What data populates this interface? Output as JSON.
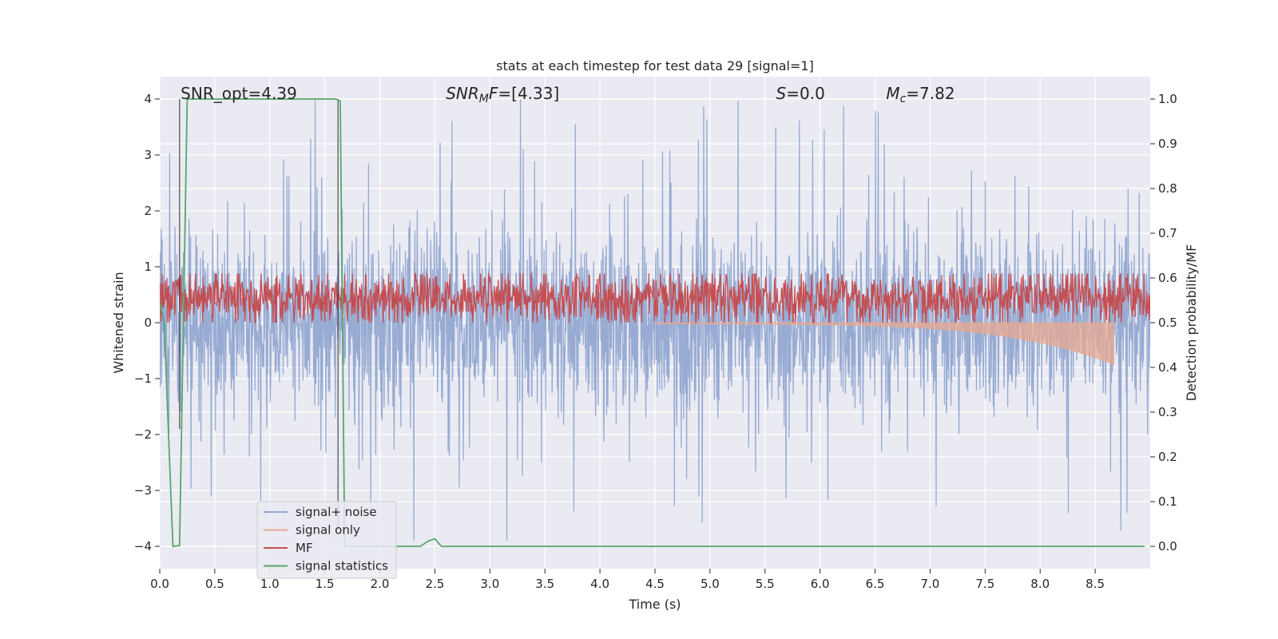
{
  "chart_data": {
    "type": "line",
    "title": "stats at each timestep for test data 29 [signal=1]",
    "xlabel": "Time (s)",
    "ylabel_left": "Whitened strain",
    "ylabel_right": "Detection probability/MF",
    "xlim": [
      0.0,
      9.0
    ],
    "ylim_left": [
      -4.4,
      4.4
    ],
    "ylim_right": [
      -0.05,
      1.05
    ],
    "x_ticks": [
      0.0,
      0.5,
      1.0,
      1.5,
      2.0,
      2.5,
      3.0,
      3.5,
      4.0,
      4.5,
      5.0,
      5.5,
      6.0,
      6.5,
      7.0,
      7.5,
      8.0,
      8.5
    ],
    "x_tick_labels": [
      "0.0",
      "0.5",
      "1.0",
      "1.5",
      "2.0",
      "2.5",
      "3.0",
      "3.5",
      "4.0",
      "4.5",
      "5.0",
      "5.5",
      "6.0",
      "6.5",
      "7.0",
      "7.5",
      "8.0",
      "8.5"
    ],
    "y_ticks_left": [
      -4,
      -3,
      -2,
      -1,
      0,
      1,
      2,
      3,
      4
    ],
    "y_tick_labels_left": [
      "−4",
      "−3",
      "−2",
      "−1",
      "0",
      "1",
      "2",
      "3",
      "4"
    ],
    "y_ticks_right": [
      0.0,
      0.1,
      0.2,
      0.3,
      0.4,
      0.5,
      0.6,
      0.7,
      0.8,
      0.9,
      1.0
    ],
    "y_tick_labels_right": [
      "0.0",
      "0.1",
      "0.2",
      "0.3",
      "0.4",
      "0.5",
      "0.6",
      "0.7",
      "0.8",
      "0.9",
      "1.0"
    ],
    "grid": true,
    "legend_position": "lower-left",
    "annotations": [
      {
        "text": "SNR_opt=4.39",
        "x": 0.19
      },
      {
        "text": "SNR_MF=[4.33]",
        "x": 2.6
      },
      {
        "text": "S=0.0",
        "x": 5.6
      },
      {
        "text": "M_c=7.82",
        "x": 6.6
      }
    ],
    "vertical_lines": [
      {
        "x": 0.18,
        "y_range": [
          -1.9,
          4.0
        ]
      },
      {
        "x": 1.62,
        "y_range": [
          -3.7,
          4.0
        ]
      }
    ],
    "series": [
      {
        "name": "signal+ noise",
        "axis": "left",
        "color": "#92a8d1",
        "description_type": "noise",
        "envelope": {
          "dense_abs": 1.5,
          "peak_max": 4.0,
          "peak_min": -3.9
        }
      },
      {
        "name": "signal only",
        "axis": "left",
        "color": "#e8a890",
        "description_type": "chirp",
        "chirp": {
          "x_start": 4.5,
          "x_end": 8.67,
          "amp_start": 0.05,
          "amp_end": 0.75
        }
      },
      {
        "name": "MF",
        "axis": "right",
        "color": "#c44e52",
        "description_type": "noise",
        "envelope": {
          "base": 0.5,
          "mean": 0.555,
          "spread": 0.03,
          "peaks": [
            [
              3.8,
              0.6
            ],
            [
              7.98,
              0.605
            ],
            [
              8.78,
              0.6
            ],
            [
              2.1,
              0.59
            ],
            [
              6.9,
              0.59
            ]
          ]
        }
      },
      {
        "name": "signal statistics",
        "axis": "right",
        "color": "#55a868",
        "x": [
          0.0,
          0.04,
          0.12,
          0.18,
          0.25,
          0.28,
          0.6,
          1.0,
          1.4,
          1.6,
          1.64,
          1.68,
          2.0,
          2.37,
          2.44,
          2.5,
          2.56,
          3.0,
          4.0,
          5.0,
          6.0,
          7.0,
          8.0,
          8.95
        ],
        "values": [
          0.55,
          0.5,
          0.0,
          0.002,
          1.0,
          1.0,
          1.0,
          1.0,
          1.0,
          1.0,
          0.995,
          0.0,
          0.0,
          0.0,
          0.012,
          0.017,
          0.0,
          0.0,
          0.0,
          0.0,
          0.0,
          0.0,
          0.0,
          0.0
        ]
      }
    ]
  }
}
